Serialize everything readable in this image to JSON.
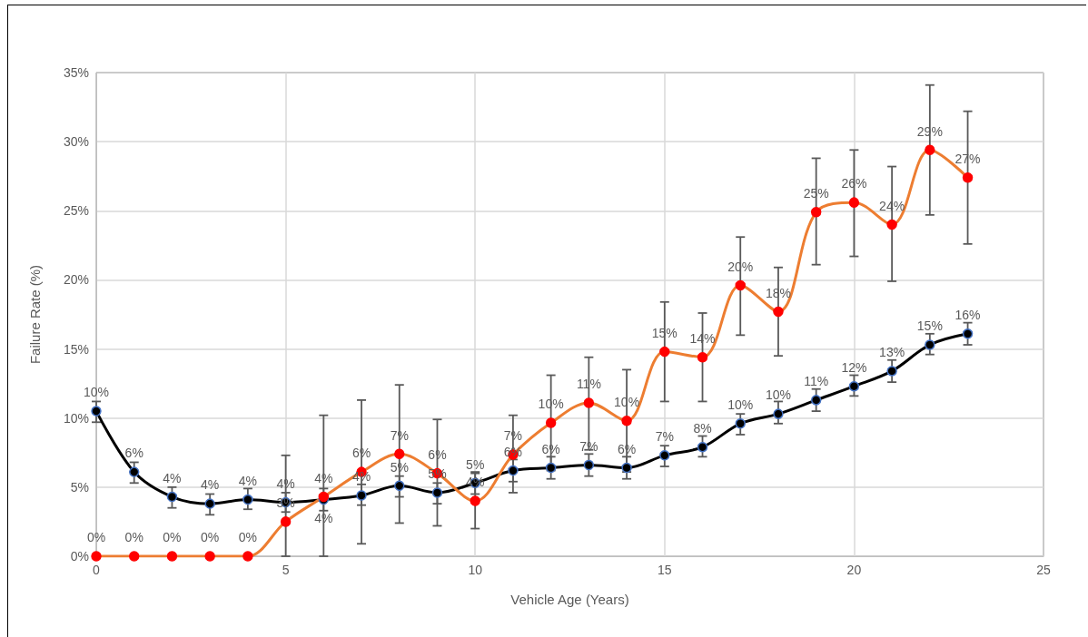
{
  "chart_data": {
    "type": "line",
    "xlabel": "Vehicle Age (Years)",
    "ylabel": "Failure Rate (%)",
    "x": [
      0,
      1,
      2,
      3,
      4,
      5,
      6,
      7,
      8,
      9,
      10,
      11,
      12,
      13,
      14,
      15,
      16,
      17,
      18,
      19,
      20,
      21,
      22,
      23
    ],
    "xlim": [
      0,
      25
    ],
    "xticks": [
      0,
      5,
      10,
      15,
      20,
      25
    ],
    "ylim": [
      0,
      35
    ],
    "yticks": [
      {
        "value": 0,
        "label": "0%"
      },
      {
        "value": 5,
        "label": "5%"
      },
      {
        "value": 10,
        "label": "10%"
      },
      {
        "value": 15,
        "label": "15%"
      },
      {
        "value": 20,
        "label": "20%"
      },
      {
        "value": 25,
        "label": "25%"
      },
      {
        "value": 30,
        "label": "30%"
      },
      {
        "value": 35,
        "label": "35%"
      }
    ],
    "grid": true,
    "marker": "circle",
    "line_style": "solid",
    "series": [
      {
        "color": "#000000",
        "values": [
          10.5,
          6.1,
          4.3,
          3.8,
          4.1,
          3.9,
          4.1,
          4.4,
          5.1,
          4.6,
          5.3,
          6.2,
          6.4,
          6.6,
          6.4,
          7.3,
          7.9,
          9.6,
          10.3,
          11.3,
          12.3,
          13.4,
          15.3,
          16.1
        ],
        "errors": [
          [
            9.7,
            11.2
          ],
          [
            5.3,
            6.8
          ],
          [
            3.5,
            5.0
          ],
          [
            3.0,
            4.5
          ],
          [
            3.4,
            4.9
          ],
          [
            3.2,
            4.6
          ],
          [
            3.3,
            4.9
          ],
          [
            3.7,
            5.2
          ],
          [
            4.3,
            5.8
          ],
          [
            3.8,
            5.3
          ],
          [
            4.5,
            6.1
          ],
          [
            5.4,
            7.0
          ],
          [
            5.6,
            7.2
          ],
          [
            5.8,
            7.4
          ],
          [
            5.6,
            7.2
          ],
          [
            6.5,
            8.0
          ],
          [
            7.2,
            8.7
          ],
          [
            8.8,
            10.3
          ],
          [
            9.6,
            11.2
          ],
          [
            10.5,
            12.1
          ],
          [
            11.6,
            13.1
          ],
          [
            12.6,
            14.2
          ],
          [
            14.6,
            16.1
          ],
          [
            15.3,
            16.9
          ]
        ],
        "value_labels": [
          "10%",
          "6%",
          "4%",
          "4%",
          "4%",
          "4%",
          "4%",
          "4%",
          "5%",
          "5%",
          "5%",
          "6%",
          "6%",
          "7%",
          "6%",
          "7%",
          "8%",
          "10%",
          "10%",
          "11%",
          "12%",
          "13%",
          "15%",
          "16%"
        ]
      },
      {
        "color": "#ed7d31",
        "values": [
          0,
          0,
          0,
          0,
          0,
          2.5,
          4.3,
          6.1,
          7.4,
          6.0,
          4.0,
          7.35,
          9.65,
          11.1,
          9.8,
          14.8,
          14.4,
          19.6,
          17.7,
          24.9,
          25.6,
          24.0,
          29.4,
          27.4
        ],
        "errors": [
          null,
          null,
          null,
          null,
          null,
          [
            0,
            7.3
          ],
          [
            0,
            10.2
          ],
          [
            0.9,
            11.3
          ],
          [
            2.4,
            12.4
          ],
          [
            2.2,
            9.9
          ],
          [
            2.0,
            6.0
          ],
          [
            4.6,
            10.2
          ],
          [
            6.2,
            13.1
          ],
          [
            7.7,
            14.4
          ],
          [
            6.1,
            13.5
          ],
          [
            11.2,
            18.4
          ],
          [
            11.2,
            17.6
          ],
          [
            16.0,
            23.1
          ],
          [
            14.5,
            20.9
          ],
          [
            21.1,
            28.8
          ],
          [
            21.7,
            29.4
          ],
          [
            19.9,
            28.2
          ],
          [
            24.7,
            34.1
          ],
          [
            22.6,
            32.2
          ]
        ],
        "value_labels": [
          "0%",
          "0%",
          "0%",
          "0%",
          "0%",
          "3%",
          "4%",
          "6%",
          "7%",
          "6%",
          "4%",
          "7%",
          "10%",
          "11%",
          "10%",
          "15%",
          "14%",
          "20%",
          "18%",
          "25%",
          "26%",
          "24%",
          "29%",
          "27%"
        ]
      }
    ]
  }
}
